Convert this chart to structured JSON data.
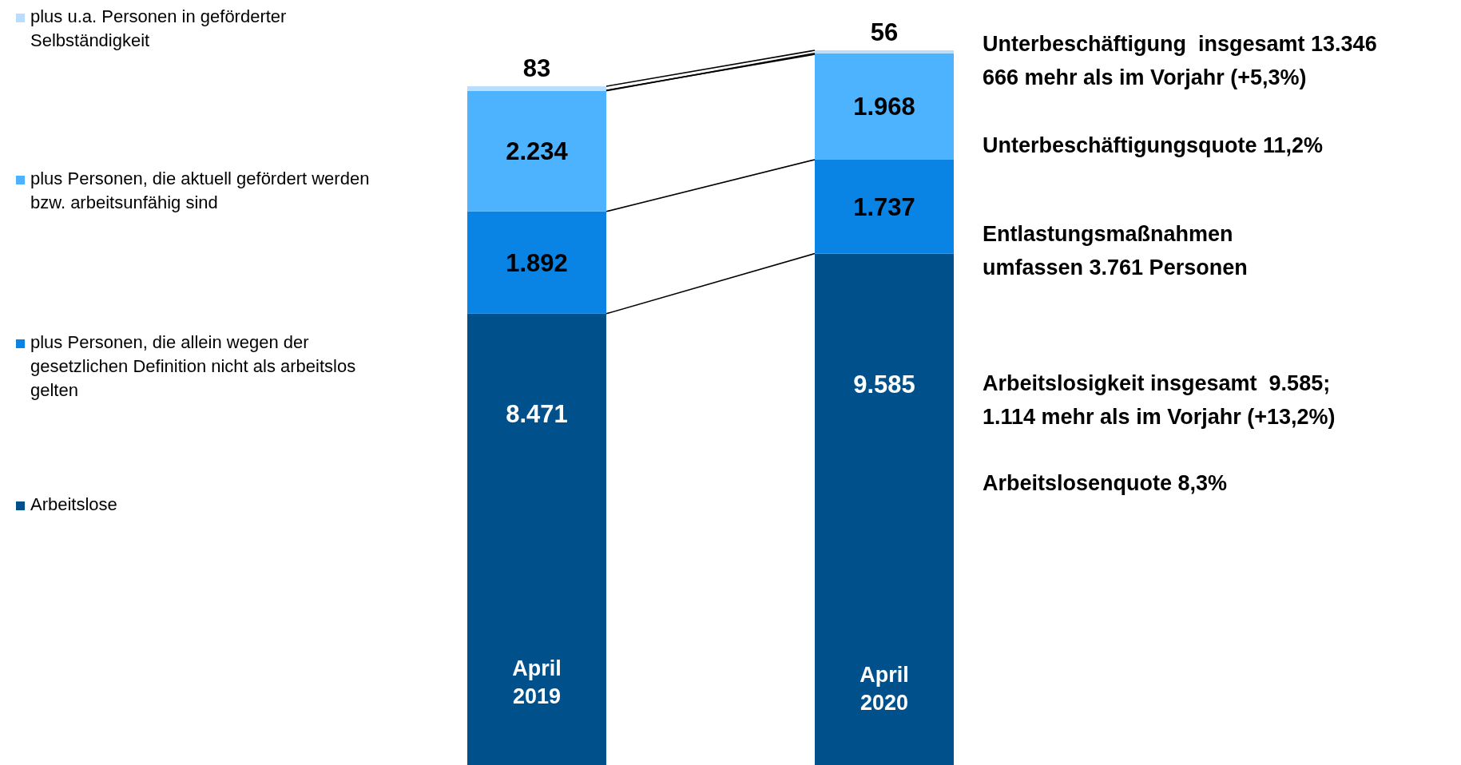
{
  "chart_data": {
    "type": "bar",
    "stacked": true,
    "categories": [
      "April 2019",
      "April 2020"
    ],
    "series": [
      {
        "name": "Arbeitslose",
        "color": "#00508c",
        "values": [
          8471,
          9585
        ],
        "value_labels": [
          "8.471",
          "9.585"
        ]
      },
      {
        "name": "plus Personen, die allein wegen der gesetzlichen Definition nicht als arbeitslos gelten",
        "color": "#0a84e4",
        "values": [
          1892,
          1737
        ],
        "value_labels": [
          "1.892",
          "1.737"
        ]
      },
      {
        "name": "plus Personen, die aktuell gefördert werden bzw. arbeitsunfähig sind",
        "color": "#4db3ff",
        "values": [
          2234,
          1968
        ],
        "value_labels": [
          "2.234",
          "1.968"
        ]
      },
      {
        "name": "plus u.a. Personen in geförderter Selbständigkeit",
        "color": "#b8ddff",
        "values": [
          83,
          56
        ],
        "value_labels": [
          "83",
          "56"
        ]
      }
    ],
    "legend": "left",
    "annotations": [
      "Unterbeschäftigung  insgesamt 13.346\n666 mehr als im Vorjahr (+5,3%)",
      "Unterbeschäftigungsquote 11,2%",
      "Entlastungsmaßnahmen\numfassen 3.761 Personen",
      "Arbeitslosigkeit insgesamt  9.585;\n1.114 mehr als im Vorjahr (+13,2%)",
      "Arbeitslosenquote 8,3%"
    ]
  }
}
